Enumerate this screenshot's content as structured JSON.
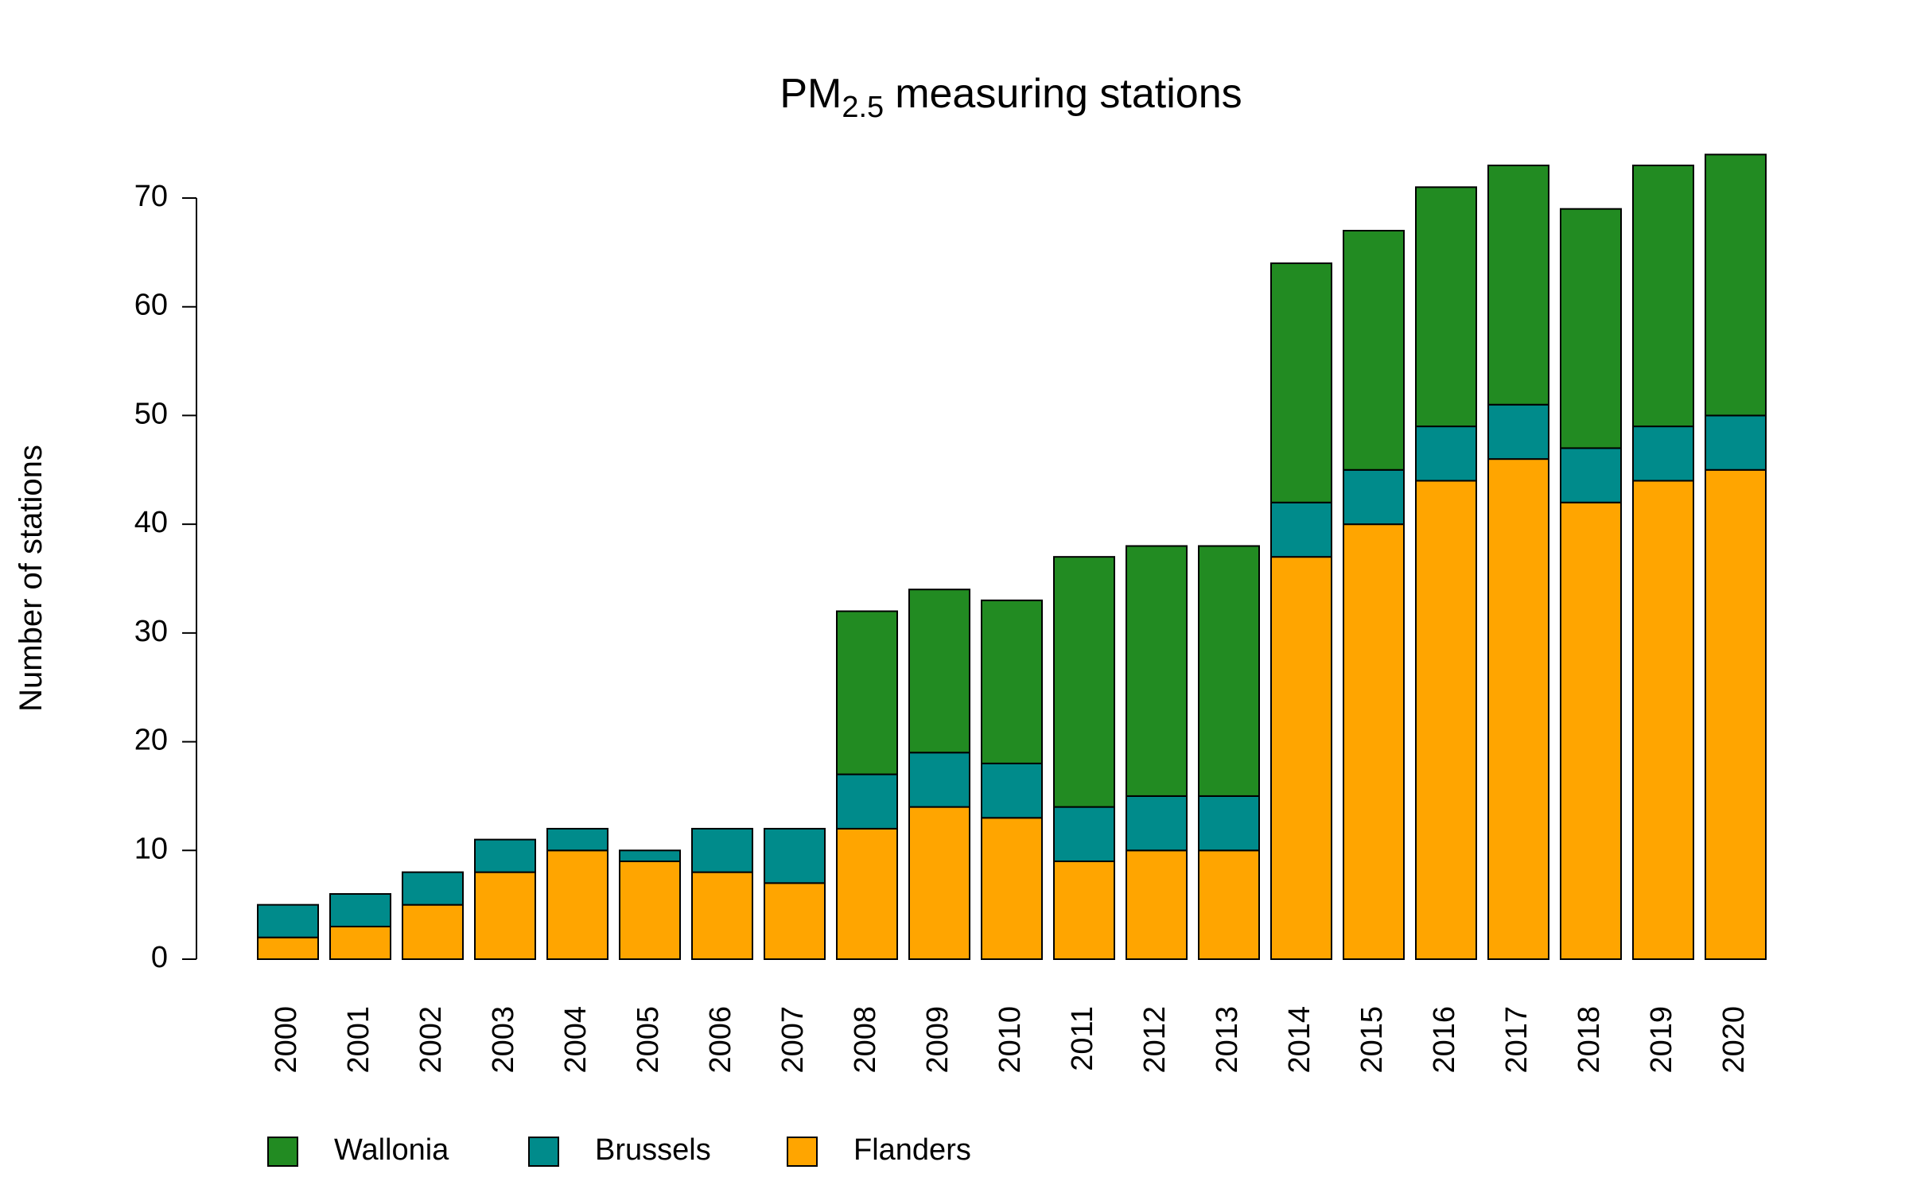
{
  "chart_data": {
    "type": "stacked-bar",
    "title": {
      "text": "PM",
      "subscript": "2.5",
      "suffix": "measuring stations"
    },
    "y_label": "Number of stations",
    "categories": [
      "2000",
      "2001",
      "2002",
      "2003",
      "2004",
      "2005",
      "2006",
      "2007",
      "2008",
      "2009",
      "2010",
      "2011",
      "2012",
      "2013",
      "2014",
      "2015",
      "2016",
      "2017",
      "2018",
      "2019",
      "2020"
    ],
    "series": [
      {
        "name": "Flanders",
        "color": "#ffa500",
        "values": [
          2,
          3,
          5,
          8,
          10,
          9,
          8,
          7,
          12,
          14,
          13,
          9,
          10,
          10,
          37,
          40,
          44,
          46,
          42,
          44,
          45
        ]
      },
      {
        "name": "Brussels",
        "color": "#008b8b",
        "values": [
          3,
          3,
          3,
          3,
          2,
          1,
          4,
          5,
          5,
          5,
          5,
          5,
          5,
          5,
          5,
          5,
          5,
          5,
          5,
          5,
          5
        ]
      },
      {
        "name": "Wallonia",
        "color": "#228b22",
        "values": [
          0,
          0,
          0,
          0,
          0,
          0,
          0,
          0,
          15,
          15,
          15,
          23,
          23,
          23,
          22,
          22,
          22,
          22,
          22,
          24,
          24
        ]
      }
    ],
    "ylim": [
      0,
      70
    ],
    "yticks": [
      0,
      10,
      20,
      30,
      40,
      50,
      60,
      70
    ],
    "legend": "bottom"
  }
}
